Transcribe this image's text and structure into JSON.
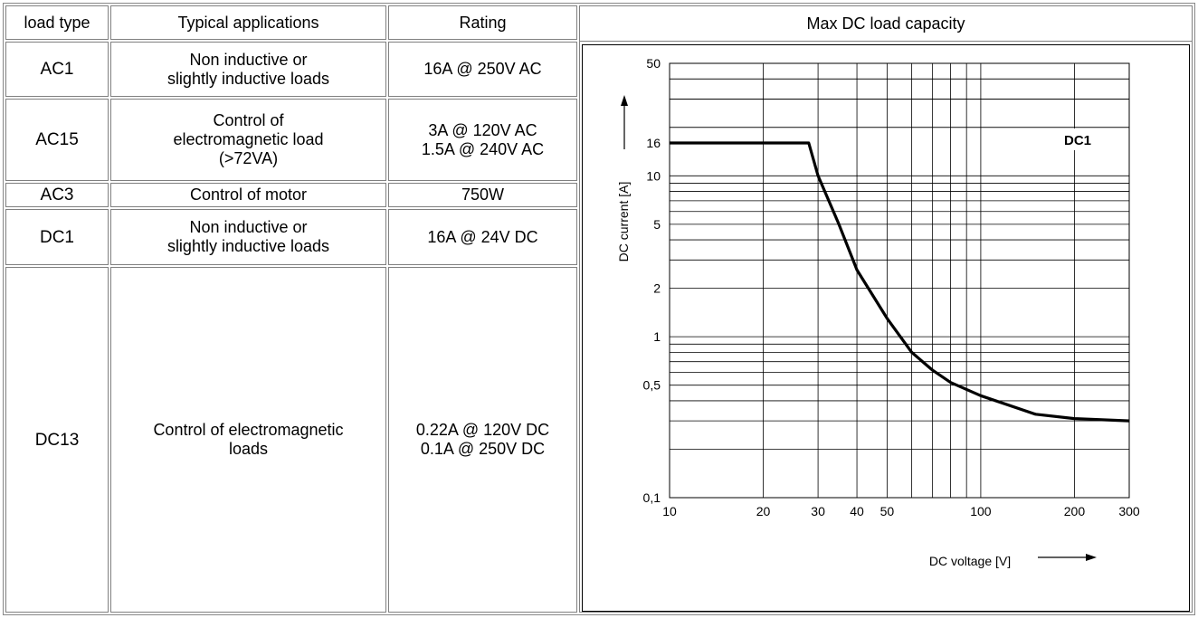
{
  "table": {
    "headers": [
      "load type",
      "Typical applications",
      "Rating",
      "Max DC load capacity"
    ],
    "rows": [
      {
        "type": "AC1",
        "application": "Non inductive or\nslightly inductive loads",
        "rating": "16A @ 250V AC"
      },
      {
        "type": "AC15",
        "application": "Control of\nelectromagnetic load\n(>72VA)",
        "rating": "3A @ 120V AC\n1.5A @ 240V AC"
      },
      {
        "type": "AC3",
        "application": "Control of motor",
        "rating": "750W"
      },
      {
        "type": "DC1",
        "application": "Non inductive or\nslightly inductive loads",
        "rating": "16A @ 24V DC"
      },
      {
        "type": "DC13",
        "application": "Control of electromagnetic\nloads",
        "rating": "0.22A @ 120V DC\n0.1A @ 250V DC"
      }
    ]
  },
  "chart_data": {
    "type": "line",
    "title": "",
    "xlabel": "DC voltage [V]",
    "ylabel": "DC current [A]",
    "xscale": "log",
    "yscale": "log",
    "xlim": [
      10,
      300
    ],
    "ylim": [
      0.1,
      50
    ],
    "x_ticks": [
      10,
      20,
      30,
      40,
      50,
      100,
      200,
      300
    ],
    "x_tick_labels": [
      "10",
      "20",
      "30",
      "40",
      "50",
      "100",
      "200",
      "300"
    ],
    "y_ticks": [
      0.1,
      0.5,
      1,
      2,
      5,
      10,
      16,
      50
    ],
    "y_tick_labels": [
      "0,1",
      "0,5",
      "1",
      "2",
      "5",
      "10",
      "16",
      "50"
    ],
    "grid": true,
    "annotation": "DC1",
    "series": [
      {
        "name": "DC1",
        "x": [
          10,
          28,
          30,
          35,
          40,
          50,
          60,
          70,
          80,
          100,
          150,
          200,
          300
        ],
        "y": [
          16,
          16,
          10,
          5,
          2.6,
          1.3,
          0.8,
          0.62,
          0.52,
          0.43,
          0.33,
          0.31,
          0.3
        ]
      }
    ]
  }
}
